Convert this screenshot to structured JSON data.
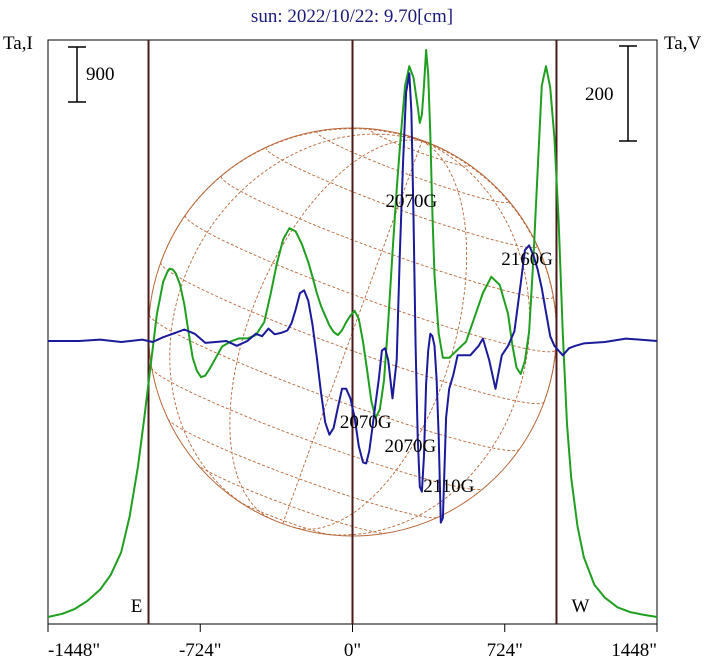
{
  "chart_data": {
    "type": "line",
    "title": "sun: 2022/10/22: 9.70[cm]",
    "left_axis_label": "Ta,I",
    "right_axis_label": "Ta,V",
    "left_scale_bar": "900",
    "right_scale_bar": "200",
    "xlim": [
      -1448,
      1448
    ],
    "x_ticks": [
      {
        "value": -1448,
        "label": "-1448\""
      },
      {
        "value": -724,
        "label": "-724\""
      },
      {
        "value": 0,
        "label": "0\""
      },
      {
        "value": 724,
        "label": "724\""
      },
      {
        "value": 1448,
        "label": "1448\""
      }
    ],
    "limb_markers": [
      {
        "x": -970,
        "label": "E"
      },
      {
        "x": 970,
        "label": "W"
      }
    ],
    "colors": {
      "stokes_i": "#1f9f1f",
      "stokes_v": "#1a1a9a",
      "limb": "#4a1a1a",
      "grid": "#b8683a",
      "title": "#1a1a7a"
    },
    "series": [
      {
        "key": "stokes_i",
        "x": [
          -1448,
          -1380,
          -1320,
          -1260,
          -1200,
          -1150,
          -1100,
          -1060,
          -1020,
          -990,
          -960,
          -930,
          -900,
          -880,
          -870,
          -855,
          -840,
          -820,
          -800,
          -780,
          -760,
          -740,
          -720,
          -700,
          -680,
          -650,
          -620,
          -580,
          -540,
          -500,
          -460,
          -420,
          -390,
          -360,
          -330,
          -300,
          -270,
          -240,
          -210,
          -190,
          -170,
          -150,
          -130,
          -110,
          -90,
          -70,
          -50,
          -30,
          -10,
          10,
          30,
          50,
          70,
          90,
          110,
          130,
          150,
          170,
          190,
          210,
          230,
          250,
          270,
          290,
          310,
          320,
          330,
          340,
          350,
          360,
          370,
          380,
          390,
          410,
          430,
          460,
          500,
          540,
          580,
          620,
          660,
          700,
          740,
          760,
          780,
          800,
          820,
          840,
          860,
          880,
          900,
          920,
          940,
          960,
          980,
          1000,
          1020,
          1040,
          1070,
          1100,
          1150,
          1200,
          1260,
          1320,
          1380,
          1448
        ],
        "y": [
          0,
          20,
          50,
          100,
          170,
          260,
          400,
          620,
          930,
          1230,
          1550,
          1870,
          2070,
          2130,
          2150,
          2145,
          2120,
          2050,
          1930,
          1760,
          1600,
          1520,
          1480,
          1490,
          1530,
          1600,
          1670,
          1700,
          1720,
          1720,
          1740,
          1820,
          1990,
          2180,
          2330,
          2400,
          2380,
          2300,
          2190,
          2100,
          2000,
          1920,
          1860,
          1800,
          1760,
          1740,
          1770,
          1820,
          1860,
          1890,
          1840,
          1700,
          1520,
          1330,
          1230,
          1280,
          1460,
          1820,
          2250,
          2640,
          2980,
          3280,
          3400,
          3330,
          3150,
          3050,
          3100,
          3280,
          3500,
          3350,
          2980,
          2490,
          2110,
          1750,
          1600,
          1600,
          1650,
          1700,
          1850,
          2000,
          2100,
          2050,
          1870,
          1680,
          1540,
          1500,
          1580,
          1760,
          2200,
          2750,
          3280,
          3400,
          3270,
          2960,
          2450,
          1750,
          1190,
          860,
          560,
          370,
          200,
          120,
          60,
          30,
          15,
          0
        ]
      },
      {
        "key": "stokes_v",
        "x": [
          -1448,
          -1300,
          -1200,
          -1100,
          -1000,
          -950,
          -900,
          -850,
          -800,
          -750,
          -700,
          -650,
          -600,
          -550,
          -500,
          -460,
          -430,
          -400,
          -370,
          -340,
          -310,
          -290,
          -270,
          -250,
          -230,
          -210,
          -190,
          -170,
          -150,
          -130,
          -110,
          -90,
          -70,
          -50,
          -30,
          -10,
          10,
          30,
          50,
          65,
          80,
          95,
          110,
          125,
          140,
          155,
          170,
          190,
          210,
          225,
          240,
          255,
          270,
          280,
          290,
          300,
          310,
          320,
          330,
          340,
          350,
          360,
          370,
          380,
          390,
          400,
          410,
          420,
          430,
          445,
          460,
          480,
          500,
          520,
          540,
          560,
          580,
          600,
          620,
          650,
          680,
          710,
          740,
          770,
          800,
          820,
          840,
          860,
          880,
          900,
          920,
          940,
          960,
          980,
          1000,
          1030,
          1060,
          1100,
          1200,
          1300,
          1448
        ],
        "y": [
          0,
          0,
          3,
          -2,
          3,
          -2,
          8,
          16,
          24,
          15,
          -4,
          -2,
          0,
          -10,
          0,
          15,
          10,
          26,
          14,
          17,
          22,
          37,
          66,
          100,
          106,
          84,
          34,
          -34,
          -108,
          -170,
          -196,
          -182,
          -140,
          -100,
          -100,
          -120,
          -160,
          -220,
          -254,
          -256,
          -230,
          -180,
          -130,
          -80,
          -20,
          -15,
          -40,
          -120,
          -40,
          180,
          370,
          520,
          560,
          480,
          260,
          -10,
          -200,
          -305,
          -315,
          -240,
          -90,
          -20,
          15,
          10,
          -10,
          -80,
          -200,
          -380,
          -370,
          -160,
          -100,
          -70,
          -30,
          -30,
          -30,
          -30,
          -20,
          -10,
          5,
          -40,
          -100,
          -30,
          -10,
          20,
          120,
          190,
          200,
          180,
          150,
          110,
          60,
          10,
          -10,
          -20,
          -30,
          -15,
          -10,
          -5,
          -2,
          5,
          0
        ]
      }
    ],
    "annotations": [
      {
        "x": 280,
        "text": "2070G"
      },
      {
        "x": 840,
        "text": "2160G"
      },
      {
        "x": 120,
        "text": "2070G"
      },
      {
        "x": 280,
        "text": "2070G"
      },
      {
        "x": 420,
        "text": "2110G"
      }
    ]
  }
}
